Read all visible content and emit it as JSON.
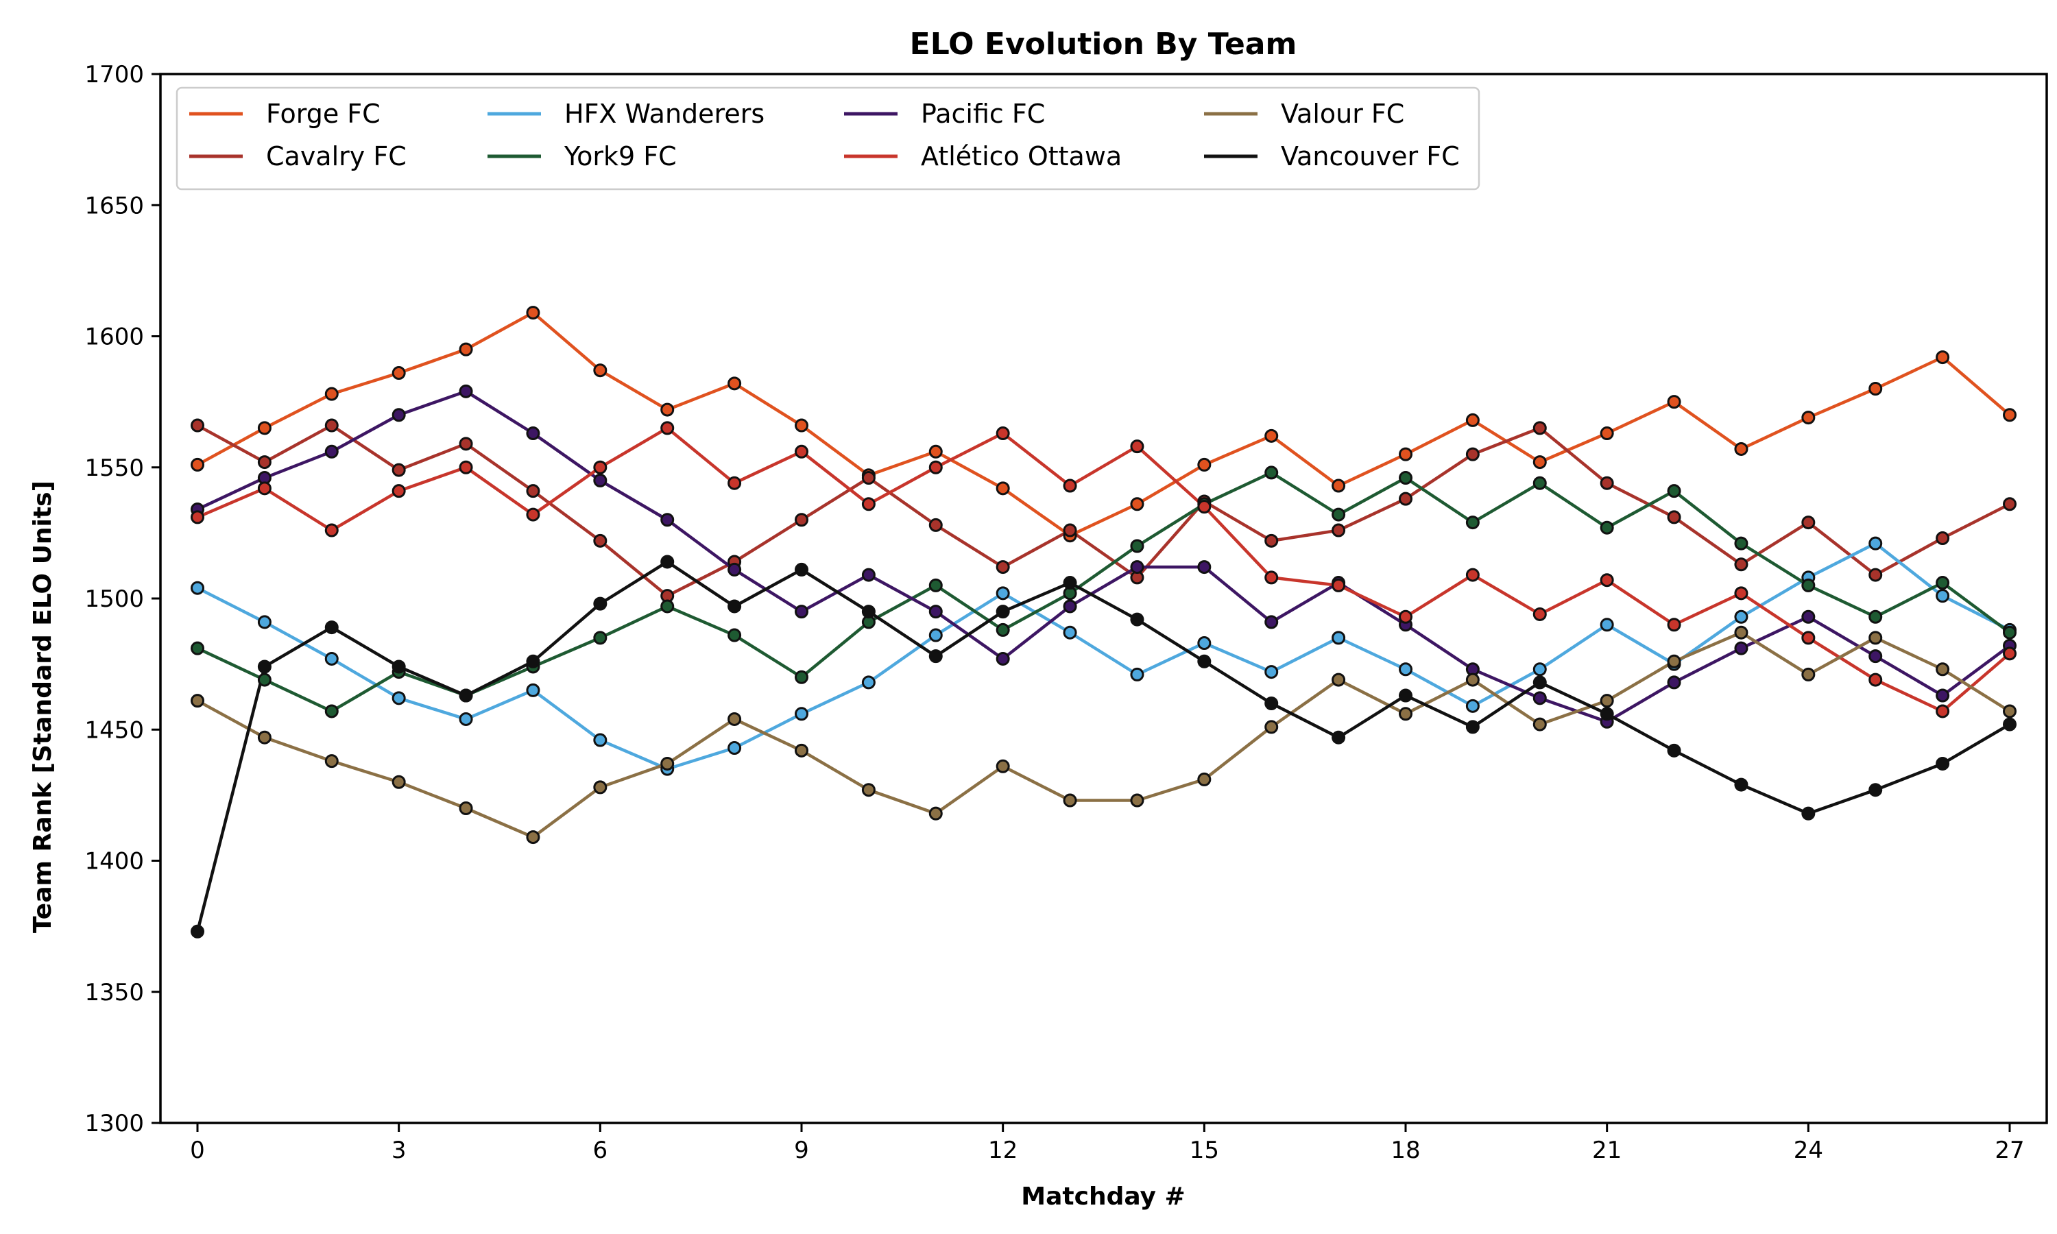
{
  "chart_data": {
    "type": "line",
    "title": "ELO Evolution By Team",
    "xlabel": "Matchday #",
    "ylabel": "Team Rank [Standard ELO Units]",
    "xlim": [
      0,
      27
    ],
    "ylim": [
      1300,
      1700
    ],
    "xticks": [
      0,
      3,
      6,
      9,
      12,
      15,
      18,
      21,
      24,
      27
    ],
    "yticks": [
      1300,
      1350,
      1400,
      1450,
      1500,
      1550,
      1600,
      1650,
      1700
    ],
    "grid": false,
    "legend_position": "top-left",
    "legend_columns": 4,
    "x": [
      0,
      1,
      2,
      3,
      4,
      5,
      6,
      7,
      8,
      9,
      10,
      11,
      12,
      13,
      14,
      15,
      16,
      17,
      18,
      19,
      20,
      21,
      22,
      23,
      24,
      25,
      26,
      27
    ],
    "series": [
      {
        "name": "Forge FC",
        "color": "#e0521f",
        "values": [
          1551,
          1565,
          1578,
          1586,
          1595,
          1609,
          1587,
          1572,
          1582,
          1566,
          1547,
          1556,
          1542,
          1524,
          1536,
          1551,
          1562,
          1543,
          1555,
          1568,
          1552,
          1563,
          1575,
          1557,
          1569,
          1580,
          1592,
          1570
        ]
      },
      {
        "name": "Cavalry FC",
        "color": "#a8332b",
        "values": [
          1566,
          1552,
          1566,
          1549,
          1559,
          1541,
          1522,
          1501,
          1514,
          1530,
          1546,
          1528,
          1512,
          1526,
          1508,
          1537,
          1522,
          1526,
          1538,
          1555,
          1565,
          1544,
          1531,
          1513,
          1529,
          1509,
          1523,
          1536
        ]
      },
      {
        "name": "HFX Wanderers",
        "color": "#4ea8de",
        "values": [
          1504,
          1491,
          1477,
          1462,
          1454,
          1465,
          1446,
          1435,
          1443,
          1456,
          1468,
          1486,
          1502,
          1487,
          1471,
          1483,
          1472,
          1485,
          1473,
          1459,
          1473,
          1490,
          1475,
          1493,
          1508,
          1521,
          1501,
          1488
        ]
      },
      {
        "name": "York9 FC",
        "color": "#1e5a32",
        "values": [
          1481,
          1469,
          1457,
          1472,
          1463,
          1474,
          1485,
          1497,
          1486,
          1470,
          1491,
          1505,
          1488,
          1502,
          1520,
          1536,
          1548,
          1532,
          1546,
          1529,
          1544,
          1527,
          1541,
          1521,
          1505,
          1493,
          1506,
          1487
        ]
      },
      {
        "name": "Pacific FC",
        "color": "#3d1663",
        "values": [
          1534,
          1546,
          1556,
          1570,
          1579,
          1563,
          1545,
          1530,
          1511,
          1495,
          1509,
          1495,
          1477,
          1497,
          1512,
          1512,
          1491,
          1506,
          1490,
          1473,
          1462,
          1453,
          1468,
          1481,
          1493,
          1478,
          1463,
          1482
        ]
      },
      {
        "name": "Atlético Ottawa",
        "color": "#c8352b",
        "values": [
          1531,
          1542,
          1526,
          1541,
          1550,
          1532,
          1550,
          1565,
          1544,
          1556,
          1536,
          1550,
          1563,
          1543,
          1558,
          1535,
          1508,
          1505,
          1493,
          1509,
          1494,
          1507,
          1490,
          1502,
          1485,
          1469,
          1457,
          1479
        ]
      },
      {
        "name": "Valour FC",
        "color": "#8b7045",
        "values": [
          1461,
          1447,
          1438,
          1430,
          1420,
          1409,
          1428,
          1437,
          1454,
          1442,
          1427,
          1418,
          1436,
          1423,
          1423,
          1431,
          1451,
          1469,
          1456,
          1469,
          1452,
          1461,
          1476,
          1487,
          1471,
          1485,
          1473,
          1457
        ]
      },
      {
        "name": "Vancouver FC",
        "color": "#111111",
        "values": [
          1373,
          1474,
          1489,
          1474,
          1463,
          1476,
          1498,
          1514,
          1497,
          1511,
          1495,
          1478,
          1495,
          1506,
          1492,
          1476,
          1460,
          1447,
          1463,
          1451,
          1468,
          1456,
          1442,
          1429,
          1418,
          1427,
          1437,
          1452
        ]
      }
    ]
  }
}
